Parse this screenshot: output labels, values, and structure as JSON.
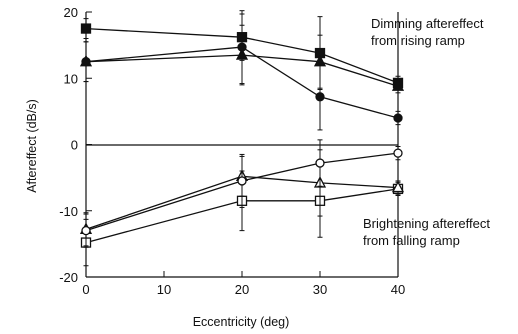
{
  "chart_data": {
    "type": "line",
    "xlabel": "Eccentricity (deg)",
    "ylabel": "Aftereffect (dB/s)",
    "xlim": [
      0,
      40
    ],
    "ylim": [
      -20,
      20
    ],
    "x_ticks": [
      "0",
      "10",
      "20",
      "30",
      "40"
    ],
    "y_ticks": [
      "-20",
      "-10",
      "0",
      "10",
      "20"
    ],
    "grid": false,
    "zero_line": true,
    "annotations": [
      {
        "lines": [
          "Dimming aftereffect",
          "from rising ramp"
        ]
      },
      {
        "lines": [
          "Brightening aftereffect",
          "from falling ramp"
        ]
      }
    ],
    "series": [
      {
        "marker": "square-filled",
        "x": [
          0,
          20,
          30,
          40
        ],
        "y": [
          17.5,
          16.2,
          13.8,
          9.3
        ],
        "err": [
          1.5,
          3.5,
          5.5,
          1.0
        ]
      },
      {
        "marker": "triangle-filled",
        "x": [
          0,
          20,
          30,
          40
        ],
        "y": [
          12.5,
          13.5,
          12.5,
          8.8
        ],
        "err": [
          3.0,
          4.5,
          4.0,
          1.0
        ]
      },
      {
        "marker": "circle-filled",
        "x": [
          0,
          20,
          30,
          40
        ],
        "y": [
          12.5,
          14.7,
          7.2,
          4.0
        ],
        "err": [
          3.0,
          5.5,
          5.0,
          1.0
        ]
      },
      {
        "marker": "square-open",
        "x": [
          0,
          20,
          30,
          40
        ],
        "y": [
          -14.8,
          -8.5,
          -8.5,
          -6.7
        ],
        "err": [
          3.5,
          4.5,
          5.5,
          1.0
        ]
      },
      {
        "marker": "triangle-open",
        "x": [
          0,
          20,
          30,
          40
        ],
        "y": [
          -12.8,
          -4.8,
          -5.8,
          -6.5
        ],
        "err": [
          2.5,
          3.0,
          5.0,
          1.0
        ]
      },
      {
        "marker": "circle-open",
        "x": [
          0,
          20,
          30,
          40
        ],
        "y": [
          -13.0,
          -5.5,
          -2.8,
          -1.3
        ],
        "err": [
          2.5,
          4.0,
          3.5,
          1.0
        ]
      }
    ]
  }
}
